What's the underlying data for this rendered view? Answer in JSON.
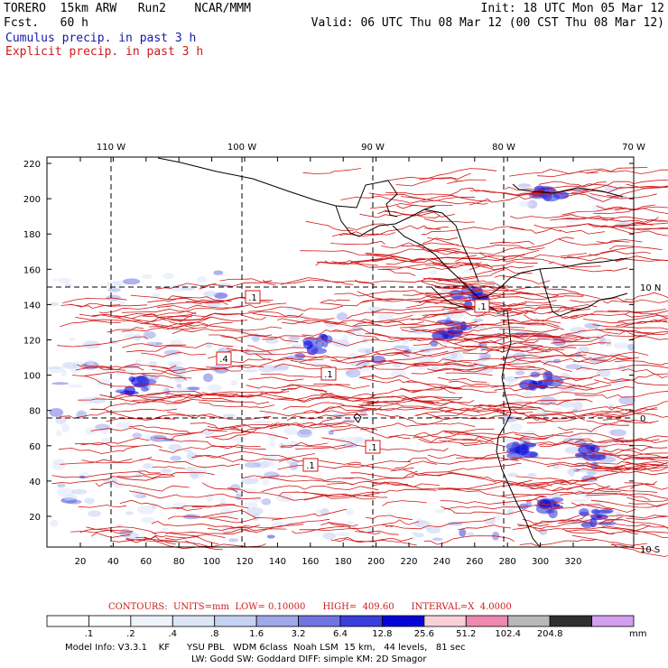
{
  "header": {
    "model": "TORERO  15km ARW   Run2    NCAR/MMM",
    "fcst": "Fcst.   60 h",
    "init": "Init: 18 UTC Mon 05 Mar 12",
    "valid": "Valid: 06 UTC Thu 08 Mar 12 (00 CST Thu 08 Mar 12)",
    "cumulus_label": "Cumulus precip. in past 3 h",
    "explicit_label": "Explicit precip. in past 3 h",
    "cumulus_color": "#1818a8",
    "explicit_color": "#d01818"
  },
  "map": {
    "lon_labels": [
      "110 W",
      "100 W",
      "90 W",
      "80 W",
      "70 W"
    ],
    "lat_labels": [
      "10 N",
      "0",
      "10 S"
    ],
    "x_ticks": [
      "20",
      "40",
      "60",
      "80",
      "100",
      "120",
      "140",
      "160",
      "180",
      "200",
      "220",
      "240",
      "260",
      "280",
      "300",
      "320"
    ],
    "y_ticks": [
      "220",
      "200",
      "180",
      "160",
      "140",
      "120",
      "100",
      "80",
      "60",
      "40",
      "20"
    ],
    "contour_value_labels": [
      ".1",
      ".4",
      ".1",
      ".1",
      ".1",
      ".1"
    ]
  },
  "contour_info": {
    "text": "CONTOURS:  UNITS=mm  LOW= 0.10000      HIGH=  409.60      INTERVAL=X  4.0000"
  },
  "legend": {
    "labels": [
      ".1",
      ".2",
      ".4",
      ".8",
      "1.6",
      "3.2",
      "6.4",
      "12.8",
      "25.6",
      "51.2",
      "102.4",
      "204.8"
    ],
    "unit": "mm",
    "colors": [
      "#ffffff",
      "#ffffff",
      "#eef2fb",
      "#dde6f7",
      "#c6d2f2",
      "#9fa8ea",
      "#6f74e2",
      "#3a3edc",
      "#0404d8",
      "#f7d0d6",
      "#ee88b0",
      "#b8b8b8",
      "#303030",
      "#d2a0ee"
    ]
  },
  "model_info": {
    "line1": "Model Info: V3.3.1    KF      YSU PBL   WDM 6class  Noah LSM  15 km,   44 levels,   81 sec",
    "line2": "LW: Godd SW: Goddard DIFF: simple KM: 2D Smagor"
  }
}
